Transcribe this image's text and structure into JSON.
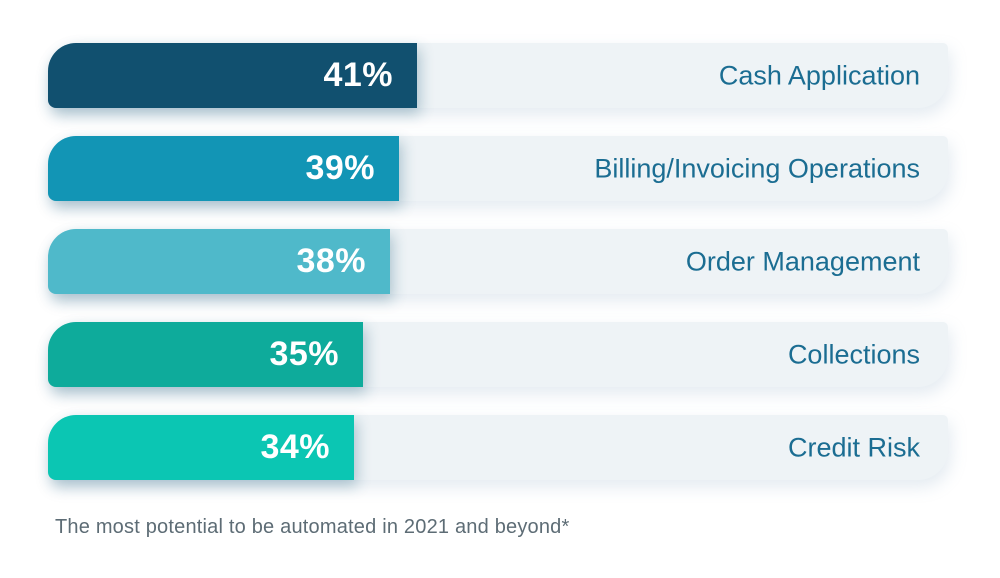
{
  "chart_data": {
    "type": "bar",
    "orientation": "horizontal",
    "categories": [
      "Cash Application",
      "Billing/Invoicing Operations",
      "Order Management",
      "Collections",
      "Credit Risk"
    ],
    "values": [
      41,
      39,
      38,
      35,
      34
    ],
    "value_labels": [
      "41%",
      "39%",
      "38%",
      "35%",
      "34%"
    ],
    "xlim": [
      0,
      100
    ],
    "bar_colors": [
      "#11506F",
      "#1295B5",
      "#4FB9CA",
      "#0EAB9B",
      "#0BC6B3"
    ],
    "track_color": "#EEF3F6",
    "value_label_color": "#FFFFFF",
    "category_label_color": "#1B6D92",
    "caption_color": "#5D6C75",
    "grid": false,
    "legend": false,
    "caption": "The most potential to be automated in 2021 and beyond*"
  }
}
